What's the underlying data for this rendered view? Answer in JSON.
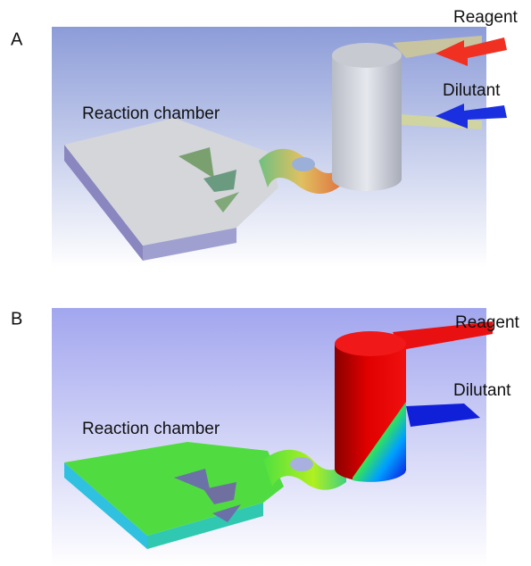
{
  "panels": [
    {
      "label": "A",
      "annotations": {
        "reagent": "Reagent",
        "dilutant": "Dilutant",
        "chamber": "Reaction chamber"
      }
    },
    {
      "label": "B",
      "annotations": {
        "reagent": "Reagent",
        "dilutant": "Dilutant",
        "chamber": "Reaction chamber"
      }
    }
  ]
}
